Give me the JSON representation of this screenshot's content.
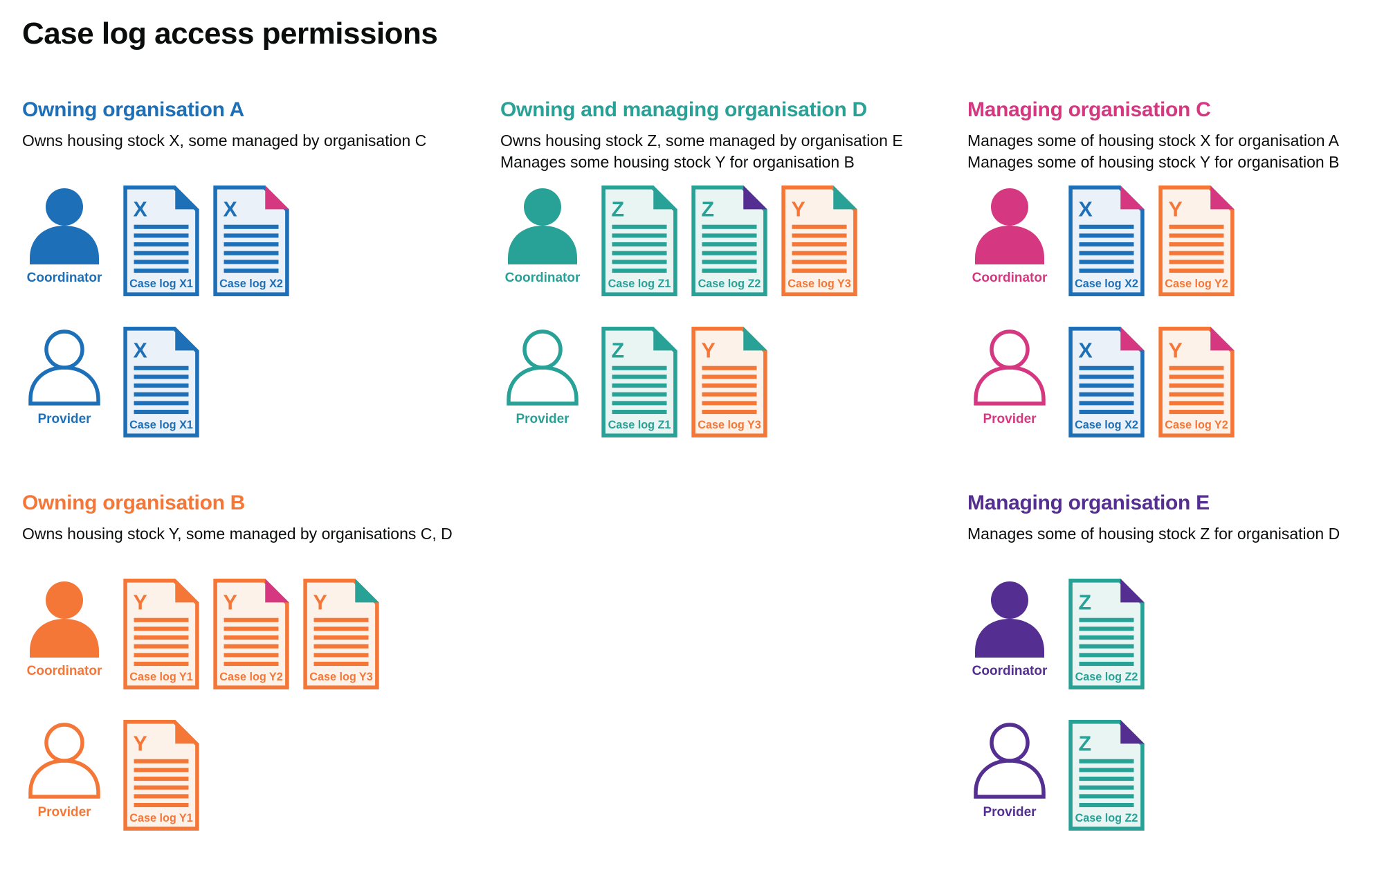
{
  "page": {
    "title": "Case log access permissions"
  },
  "colors": {
    "blue": "#1d70b8",
    "blue_light": "#eaf1f8",
    "teal": "#28a197",
    "teal_light": "#e9f5f2",
    "pink": "#d53880",
    "orange": "#f47738",
    "orange_light": "#fdf2e9",
    "purple": "#542e91",
    "text": "#0b0c0c"
  },
  "sections": [
    {
      "id": "org-a",
      "title": "Owning organisation A",
      "color_name": "blue",
      "description": [
        "Owns housing stock X, some managed by organisation C"
      ],
      "rows": [
        {
          "role": "Coordinator",
          "person": "filled",
          "docs": [
            {
              "letter": "X",
              "label": "Case log X1",
              "doc_color": "blue",
              "fold_color": "blue"
            },
            {
              "letter": "X",
              "label": "Case log X2",
              "doc_color": "blue",
              "fold_color": "pink"
            }
          ]
        },
        {
          "role": "Provider",
          "person": "outline",
          "docs": [
            {
              "letter": "X",
              "label": "Case log X1",
              "doc_color": "blue",
              "fold_color": "blue"
            }
          ]
        }
      ]
    },
    {
      "id": "org-d",
      "title": "Owning and managing organisation D",
      "color_name": "teal",
      "description": [
        "Owns housing stock Z, some managed by organisation E",
        "Manages some housing stock Y for organisation B"
      ],
      "rows": [
        {
          "role": "Coordinator",
          "person": "filled",
          "docs": [
            {
              "letter": "Z",
              "label": "Case log Z1",
              "doc_color": "teal",
              "fold_color": "teal"
            },
            {
              "letter": "Z",
              "label": "Case log Z2",
              "doc_color": "teal",
              "fold_color": "purple"
            },
            {
              "letter": "Y",
              "label": "Case log Y3",
              "doc_color": "orange",
              "fold_color": "teal"
            }
          ]
        },
        {
          "role": "Provider",
          "person": "outline",
          "docs": [
            {
              "letter": "Z",
              "label": "Case log Z1",
              "doc_color": "teal",
              "fold_color": "teal"
            },
            {
              "letter": "Y",
              "label": "Case log Y3",
              "doc_color": "orange",
              "fold_color": "teal"
            }
          ]
        }
      ]
    },
    {
      "id": "org-c",
      "title": "Managing organisation C",
      "color_name": "pink",
      "description": [
        "Manages some of housing stock X for organisation A",
        "Manages some of housing stock Y for organisation B"
      ],
      "rows": [
        {
          "role": "Coordinator",
          "person": "filled",
          "docs": [
            {
              "letter": "X",
              "label": "Case log X2",
              "doc_color": "blue",
              "fold_color": "pink"
            },
            {
              "letter": "Y",
              "label": "Case log Y2",
              "doc_color": "orange",
              "fold_color": "pink"
            }
          ]
        },
        {
          "role": "Provider",
          "person": "outline",
          "docs": [
            {
              "letter": "X",
              "label": "Case log X2",
              "doc_color": "blue",
              "fold_color": "pink"
            },
            {
              "letter": "Y",
              "label": "Case log Y2",
              "doc_color": "orange",
              "fold_color": "pink"
            }
          ]
        }
      ]
    },
    {
      "id": "org-b",
      "title": "Owning organisation B",
      "color_name": "orange",
      "description": [
        "Owns housing stock Y, some managed by organisations C, D"
      ],
      "rows": [
        {
          "role": "Coordinator",
          "person": "filled",
          "docs": [
            {
              "letter": "Y",
              "label": "Case log Y1",
              "doc_color": "orange",
              "fold_color": "orange"
            },
            {
              "letter": "Y",
              "label": "Case log Y2",
              "doc_color": "orange",
              "fold_color": "pink"
            },
            {
              "letter": "Y",
              "label": "Case log Y3",
              "doc_color": "orange",
              "fold_color": "teal"
            }
          ]
        },
        {
          "role": "Provider",
          "person": "outline",
          "docs": [
            {
              "letter": "Y",
              "label": "Case log Y1",
              "doc_color": "orange",
              "fold_color": "orange"
            }
          ]
        }
      ]
    },
    {
      "id": "org-e",
      "title": "Managing organisation E",
      "color_name": "purple",
      "description": [
        "Manages some of housing stock Z for organisation D"
      ],
      "rows": [
        {
          "role": "Coordinator",
          "person": "filled",
          "docs": [
            {
              "letter": "Z",
              "label": "Case log Z2",
              "doc_color": "teal",
              "fold_color": "purple"
            }
          ]
        },
        {
          "role": "Provider",
          "person": "outline",
          "docs": [
            {
              "letter": "Z",
              "label": "Case log Z2",
              "doc_color": "teal",
              "fold_color": "purple"
            }
          ]
        }
      ]
    }
  ]
}
